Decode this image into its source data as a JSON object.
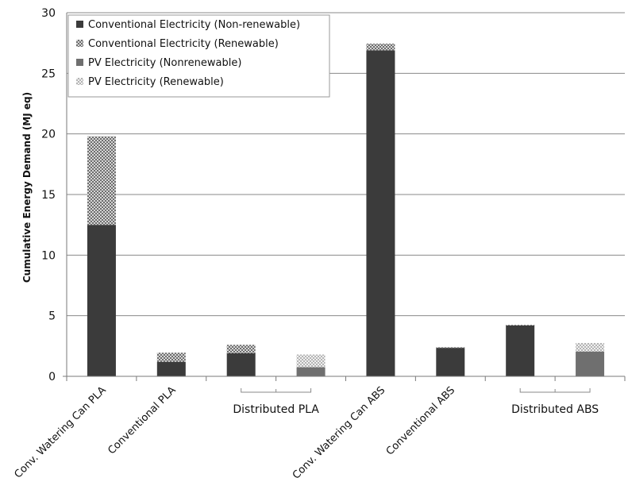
{
  "chart_data": {
    "type": "bar",
    "stacked": true,
    "title": "",
    "xlabel": "",
    "ylabel": "Cumulative Energy Demand (MJ eq)",
    "ylim": [
      0,
      30
    ],
    "yticks": [
      0,
      5,
      10,
      15,
      20,
      25,
      30
    ],
    "grid": true,
    "legend_position": "top-left",
    "categories": [
      "Conv. Watering Can PLA",
      "Conventional PLA",
      "",
      "",
      "Conv. Watering Can ABS",
      "Conventional ABS",
      "",
      ""
    ],
    "groups": [
      {
        "label": "Distributed PLA",
        "from": 2,
        "to": 3
      },
      {
        "label": "Distributed ABS",
        "from": 6,
        "to": 7
      }
    ],
    "series": [
      {
        "name": "Conventional Electricity (Non-renewable)",
        "values": [
          12.5,
          1.2,
          1.9,
          0,
          26.9,
          2.35,
          4.2,
          0
        ]
      },
      {
        "name": "Conventional Electricity (Renewable)",
        "values": [
          7.3,
          0.75,
          0.7,
          0,
          0.55,
          0.05,
          0.05,
          0
        ]
      },
      {
        "name": "PV Electricity (Nonrenewable)",
        "values": [
          0,
          0,
          0,
          0.75,
          0,
          0,
          0,
          2.05
        ]
      },
      {
        "name": "PV Electricity (Renewable)",
        "values": [
          0,
          0,
          0,
          1.05,
          0,
          0,
          0,
          0.7
        ]
      }
    ],
    "colors": {
      "conv_nonrenewable": "#3b3b3b",
      "conv_renewable_pattern": "#6e6e6e",
      "pv_nonrenewable": "#6f6f6f",
      "pv_renewable_pattern": "#b4b4b4"
    }
  }
}
